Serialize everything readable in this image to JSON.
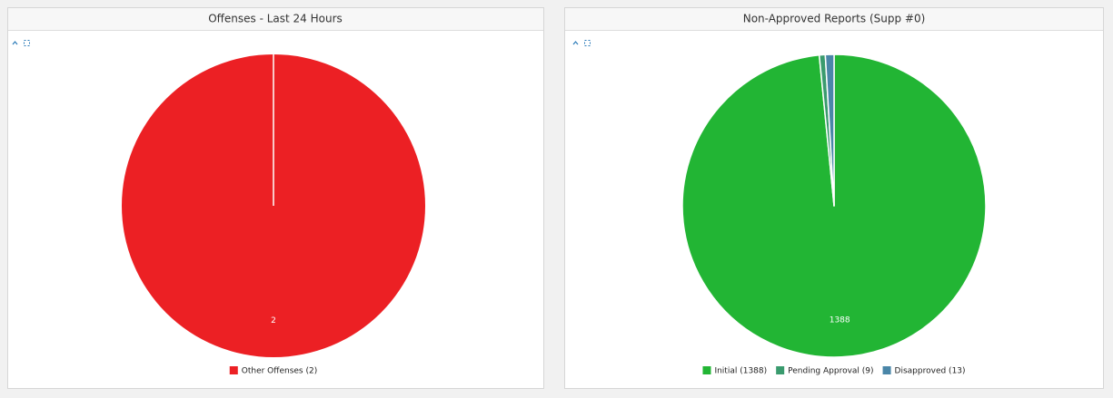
{
  "chart_data": [
    {
      "type": "pie",
      "title": "Offenses - Last 24 Hours",
      "categories": [
        "Other Offenses (2)"
      ],
      "values": [
        2
      ],
      "colors": [
        "#ec2024"
      ]
    },
    {
      "type": "pie",
      "title": "Non-Approved Reports (Supp #0)",
      "categories": [
        "Initial (1388)",
        "Pending Approval (9)",
        "Disapproved (13)"
      ],
      "values": [
        1388,
        9,
        13
      ],
      "colors": [
        "#22b534",
        "#3a9b6e",
        "#4a86a8"
      ]
    }
  ]
}
